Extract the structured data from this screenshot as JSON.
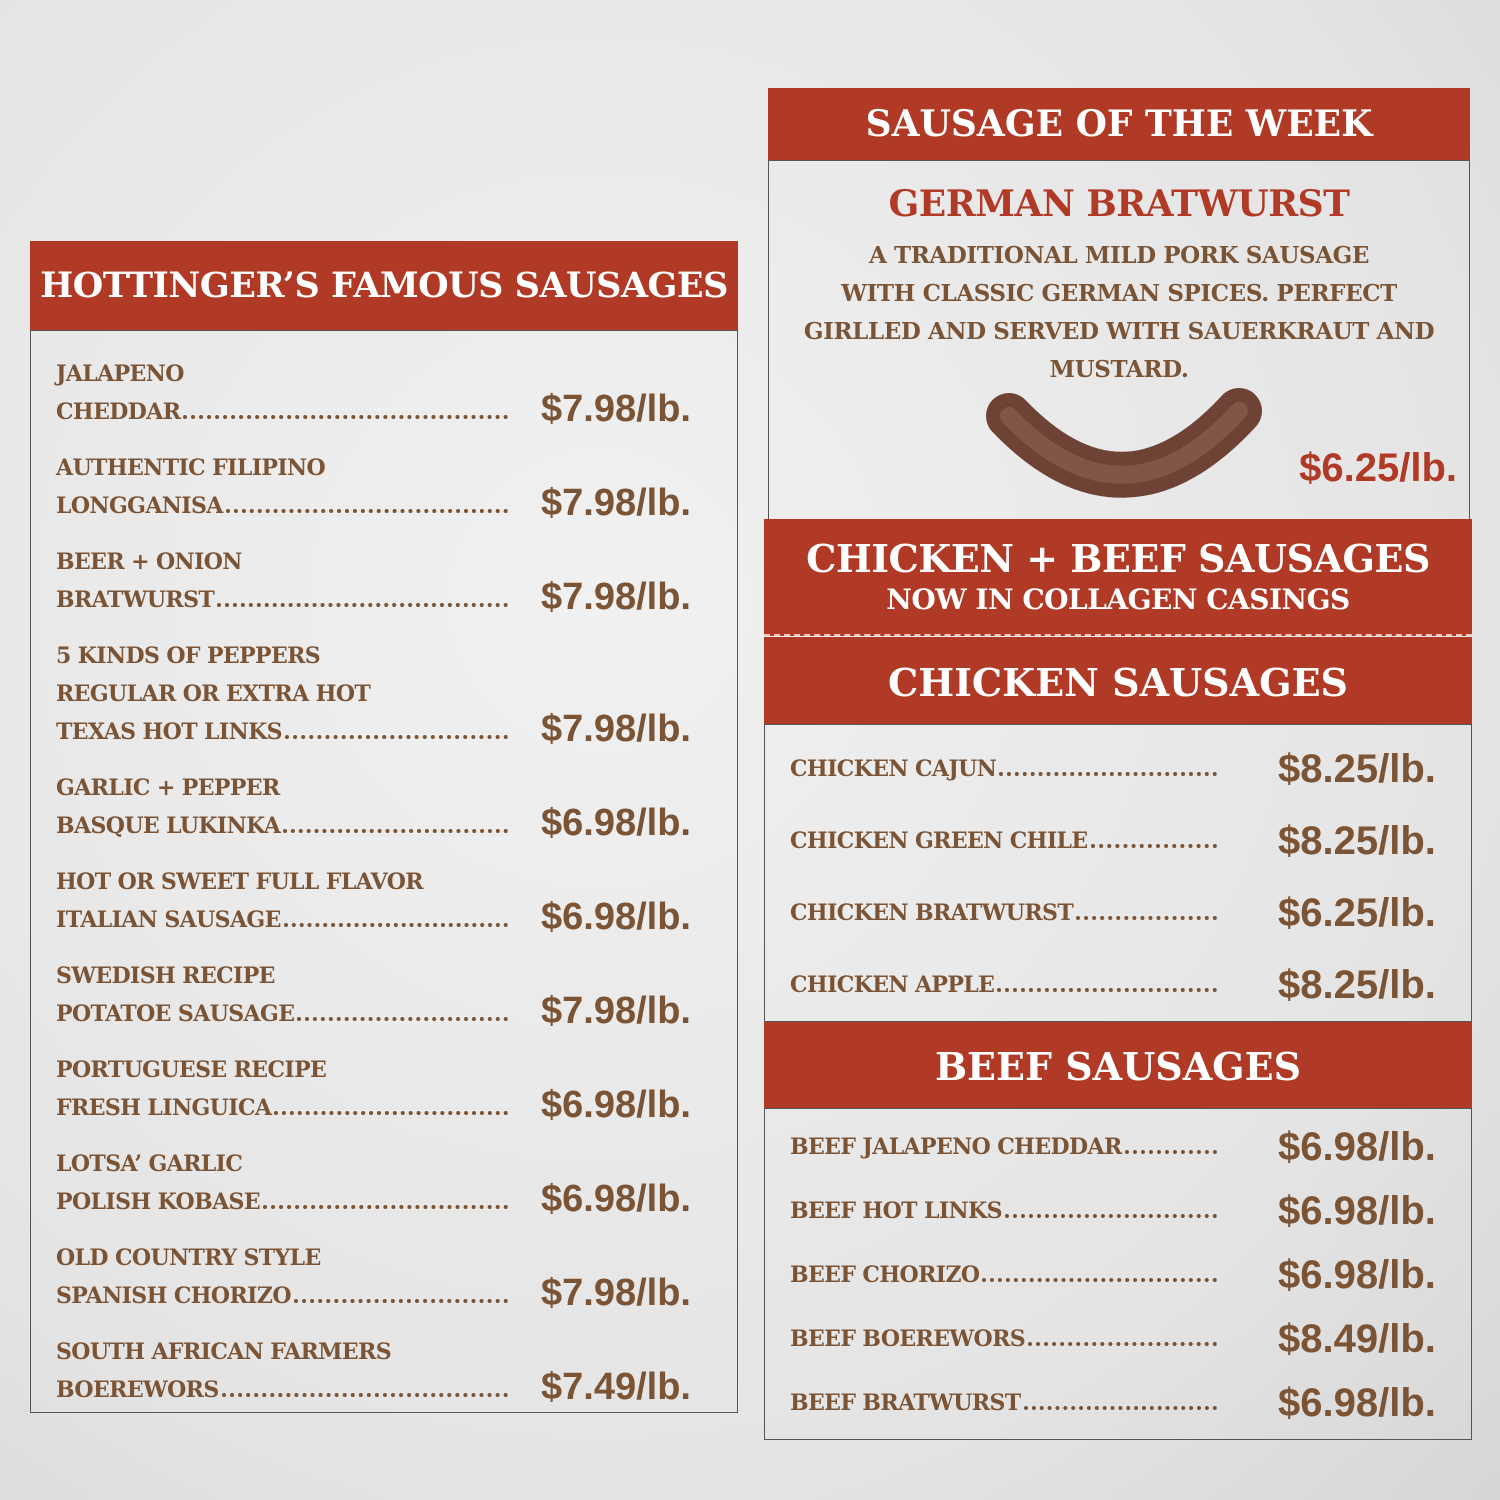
{
  "famous": {
    "title": "HOTTINGER’S FAMOUS SAUSAGES",
    "items": [
      {
        "lines": [
          "JALAPENO",
          "CHEDDAR"
        ],
        "price": "$7.98/lb."
      },
      {
        "lines": [
          "AUTHENTIC FILIPINO",
          "LONGGANISA"
        ],
        "price": "$7.98/lb."
      },
      {
        "lines": [
          "BEER + ONION",
          "BRATWURST"
        ],
        "price": "$7.98/lb."
      },
      {
        "lines": [
          "5 KINDS OF PEPPERS",
          "REGULAR OR EXTRA HOT",
          "TEXAS HOT LINKS"
        ],
        "price": "$7.98/lb."
      },
      {
        "lines": [
          "GARLIC + PEPPER",
          "BASQUE LUKINKA"
        ],
        "price": "$6.98/lb."
      },
      {
        "lines": [
          "HOT OR SWEET FULL FLAVOR",
          "ITALIAN SAUSAGE"
        ],
        "price": "$6.98/lb."
      },
      {
        "lines": [
          "SWEDISH RECIPE",
          "POTATOE SAUSAGE"
        ],
        "price": "$7.98/lb."
      },
      {
        "lines": [
          "PORTUGUESE RECIPE",
          "FRESH LINGUICA"
        ],
        "price": "$6.98/lb."
      },
      {
        "lines": [
          "LOTSA’ GARLIC",
          "POLISH KOBASE"
        ],
        "price": "$6.98/lb."
      },
      {
        "lines": [
          "OLD COUNTRY STYLE",
          "SPANISH CHORIZO"
        ],
        "price": "$7.98/lb."
      },
      {
        "lines": [
          "SOUTH AFRICAN FARMERS",
          "BOEREWORS"
        ],
        "price": "$7.49/lb."
      }
    ]
  },
  "weekly": {
    "title": "SAUSAGE OF THE WEEK",
    "name": "GERMAN BRATWURST",
    "description": [
      "A TRADITIONAL MILD PORK SAUSAGE",
      "WITH CLASSIC GERMAN SPICES.  PERFECT",
      "GIRLLED AND SERVED WITH SAUERKRAUT AND",
      "MUSTARD."
    ],
    "price": "$6.25/lb."
  },
  "collagen": {
    "title": "CHICKEN + BEEF SAUSAGES",
    "subtitle": "NOW IN COLLAGEN CASINGS"
  },
  "chicken": {
    "title": "CHICKEN SAUSAGES",
    "items": [
      {
        "name": "CHICKEN CAJUN",
        "price": "$8.25/lb."
      },
      {
        "name": "CHICKEN GREEN CHILE",
        "price": "$8.25/lb."
      },
      {
        "name": "CHICKEN BRATWURST",
        "price": "$6.25/lb."
      },
      {
        "name": "CHICKEN APPLE",
        "price": "$8.25/lb."
      }
    ]
  },
  "beef": {
    "title": "BEEF SAUSAGES",
    "items": [
      {
        "name": "BEEF JALAPENO CHEDDAR",
        "price": "$6.98/lb."
      },
      {
        "name": "BEEF HOT LINKS",
        "price": "$6.98/lb."
      },
      {
        "name": "BEEF CHORIZO",
        "price": "$6.98/lb."
      },
      {
        "name": "BEEF BOEREWORS",
        "price": "$8.49/lb."
      },
      {
        "name": "BEEF BRATWURST",
        "price": "$6.98/lb."
      }
    ]
  }
}
